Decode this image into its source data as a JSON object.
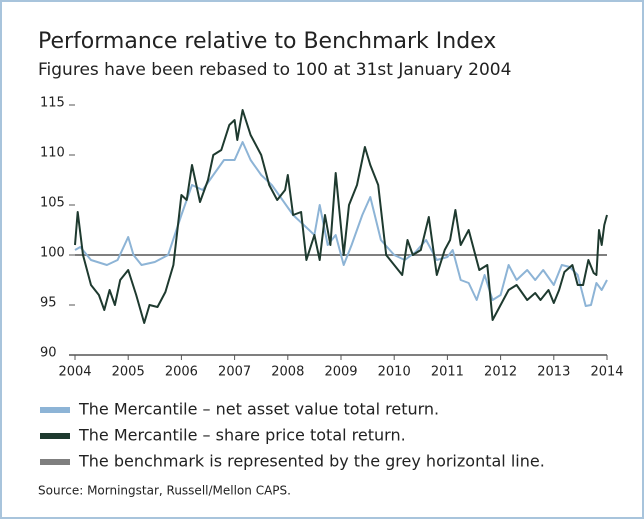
{
  "chart_data": {
    "type": "line",
    "title": "Performance relative to Benchmark Index",
    "subtitle": "Figures have been rebased to 100 at 31st January 2004",
    "source": "Source: Morningstar, Russell/Mellon CAPS.",
    "xlim": [
      2004,
      2014
    ],
    "xticks": [
      2004,
      2005,
      2006,
      2007,
      2008,
      2009,
      2010,
      2011,
      2012,
      2013,
      2014
    ],
    "ylim": [
      90,
      115
    ],
    "yticks": [
      90,
      95,
      100,
      105,
      110,
      115
    ],
    "reference_line": {
      "name": "The benchmark is represented by the grey horizontal line.",
      "value": 100,
      "color": "#7f7f7f"
    },
    "series": [
      {
        "name": "The Mercantile – net asset value total return.",
        "color": "#8db4d6",
        "x": [
          2004,
          2004.1,
          2004.3,
          2004.6,
          2004.8,
          2005.0,
          2005.1,
          2005.25,
          2005.5,
          2005.75,
          2006.0,
          2006.2,
          2006.4,
          2006.6,
          2006.8,
          2007.0,
          2007.15,
          2007.3,
          2007.5,
          2007.7,
          2007.9,
          2008.1,
          2008.3,
          2008.5,
          2008.6,
          2008.75,
          2008.9,
          2009.05,
          2009.2,
          2009.4,
          2009.55,
          2009.75,
          2010.0,
          2010.2,
          2010.4,
          2010.6,
          2010.8,
          2011.0,
          2011.1,
          2011.25,
          2011.4,
          2011.55,
          2011.7,
          2011.85,
          2012.0,
          2012.15,
          2012.3,
          2012.5,
          2012.65,
          2012.8,
          2013.0,
          2013.15,
          2013.3,
          2013.45,
          2013.6,
          2013.7,
          2013.8,
          2013.9,
          2014.0
        ],
        "values": [
          100.5,
          100.8,
          99.5,
          99,
          99.5,
          101.8,
          100,
          99,
          99.3,
          100,
          104,
          107,
          106.5,
          108,
          109.5,
          109.5,
          111.3,
          109.5,
          108,
          107,
          105.5,
          104,
          103,
          102,
          105,
          101,
          102,
          99,
          101,
          104,
          105.8,
          101.5,
          100,
          99.5,
          100.3,
          101.5,
          99.5,
          99.8,
          100.5,
          97.5,
          97.2,
          95.5,
          98,
          95.5,
          96,
          99,
          97.5,
          98.5,
          97.5,
          98.5,
          97,
          99,
          98.8,
          98,
          94.9,
          95,
          97.2,
          96.5,
          97.5
        ]
      },
      {
        "name": "The Mercantile – share price total return.",
        "color": "#1e3a2f",
        "x": [
          2004,
          2004.05,
          2004.15,
          2004.3,
          2004.45,
          2004.55,
          2004.65,
          2004.75,
          2004.85,
          2005.0,
          2005.15,
          2005.3,
          2005.4,
          2005.55,
          2005.7,
          2005.85,
          2006.0,
          2006.1,
          2006.2,
          2006.35,
          2006.5,
          2006.6,
          2006.75,
          2006.9,
          2007.0,
          2007.05,
          2007.15,
          2007.3,
          2007.5,
          2007.65,
          2007.8,
          2007.95,
          2008.0,
          2008.1,
          2008.25,
          2008.35,
          2008.5,
          2008.6,
          2008.7,
          2008.8,
          2008.9,
          2009.05,
          2009.15,
          2009.3,
          2009.45,
          2009.55,
          2009.7,
          2009.85,
          2010.0,
          2010.15,
          2010.25,
          2010.35,
          2010.5,
          2010.65,
          2010.8,
          2010.95,
          2011.05,
          2011.15,
          2011.25,
          2011.4,
          2011.6,
          2011.75,
          2011.85,
          2012.0,
          2012.15,
          2012.3,
          2012.5,
          2012.65,
          2012.75,
          2012.9,
          2013.0,
          2013.1,
          2013.2,
          2013.35,
          2013.45,
          2013.55,
          2013.65,
          2013.75,
          2013.8,
          2013.85,
          2013.9,
          2013.95,
          2014.0
        ],
        "values": [
          101,
          104.3,
          100,
          97,
          96,
          94.5,
          96.5,
          95,
          97.5,
          98.5,
          96,
          93.2,
          95,
          94.8,
          96.3,
          99,
          106,
          105.5,
          109,
          105.3,
          107.5,
          110,
          110.5,
          113,
          113.5,
          111.5,
          114.5,
          112,
          110,
          107,
          105.5,
          106.5,
          108,
          104,
          104.3,
          99.5,
          102,
          99.5,
          104,
          101,
          108.2,
          100,
          105,
          107,
          110.8,
          109,
          107,
          100,
          99,
          98,
          101.5,
          100,
          100.5,
          103.8,
          98,
          100.5,
          101.5,
          104.5,
          101,
          102.5,
          98.5,
          99,
          93.5,
          95,
          96.5,
          97,
          95.5,
          96.2,
          95.5,
          96.5,
          95.2,
          96.5,
          98.3,
          99,
          97,
          97,
          99.5,
          98.2,
          98,
          102.5,
          101,
          103,
          104
        ]
      }
    ]
  }
}
